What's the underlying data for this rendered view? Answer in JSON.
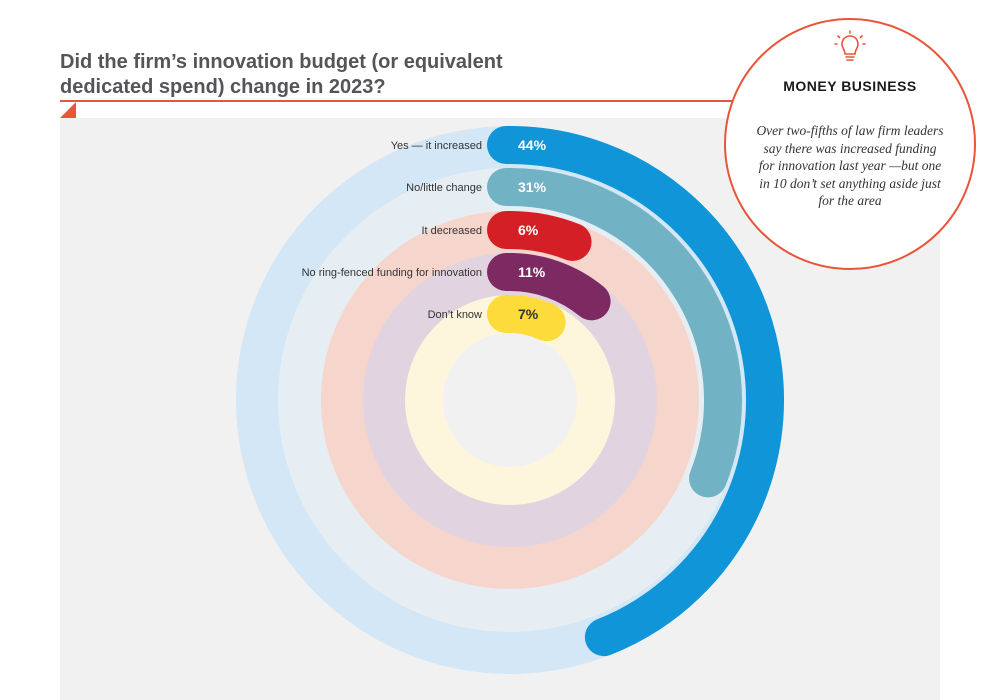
{
  "header": {
    "title": "Did the firm’s innovation budget (or equivalent dedicated spend) change in 2023?"
  },
  "callout": {
    "icon": "lightbulb-icon",
    "heading": "MONEY BUSINESS",
    "text": "Over two-fifths of law firm leaders say there was increased funding for innovation last year —but one in 10 don’t set anything aside just for the area"
  },
  "colors": {
    "accent": "#e8563a",
    "panel": "#f1f1f1"
  },
  "chart_data": {
    "type": "radial-bar",
    "unit": "%",
    "series": [
      {
        "label": "Yes — it increased",
        "value": 44,
        "display": "44%",
        "color": "#0f95d8",
        "track": "#d3e7f6",
        "text_color": "#ffffff"
      },
      {
        "label": "No/little change",
        "value": 31,
        "display": "31%",
        "color": "#72b2c5",
        "track": "#e6eef3",
        "text_color": "#ffffff"
      },
      {
        "label": "It decreased",
        "value": 6,
        "display": "6%",
        "color": "#d51f26",
        "track": "#f6d6cc",
        "text_color": "#ffffff"
      },
      {
        "label": "No ring-fenced funding for innovation",
        "value": 11,
        "display": "11%",
        "color": "#7d2a63",
        "track": "#e1d3df",
        "text_color": "#ffffff"
      },
      {
        "label": "Don’t know",
        "value": 7,
        "display": "7%",
        "color": "#fddb3b",
        "track": "#fdf6dd",
        "text_color": "#333333"
      }
    ]
  }
}
